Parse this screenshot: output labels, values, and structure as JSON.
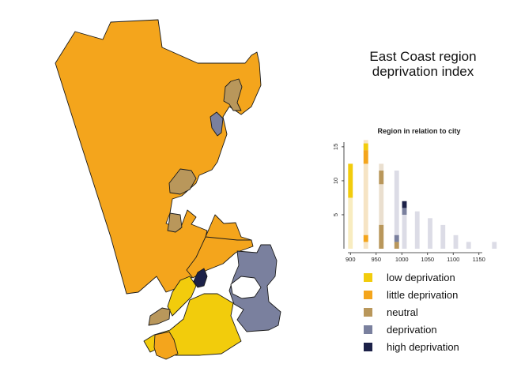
{
  "title": {
    "line1": "East Coast region",
    "line2": "deprivation index"
  },
  "colors": {
    "low_deprivation": "#f2cc0c",
    "little_deprivation": "#f4a51c",
    "neutral": "#b9975b",
    "deprivation": "#7a809e",
    "high_deprivation": "#1c2148",
    "outline": "#1a1a1a"
  },
  "legend": {
    "items": [
      {
        "label": "low deprivation",
        "color": "#f2cc0c"
      },
      {
        "label": "little deprivation",
        "color": "#f4a51c"
      },
      {
        "label": "neutral",
        "color": "#b9975b"
      },
      {
        "label": "deprivation",
        "color": "#7a809e"
      },
      {
        "label": "high deprivation",
        "color": "#1c2148"
      }
    ]
  },
  "chart_data": {
    "type": "bar",
    "title": "Region in relation to city",
    "xlabel": "",
    "ylabel": "",
    "x_ticks": [
      900,
      950,
      1000,
      1050,
      1100,
      1150
    ],
    "y_ticks": [
      5,
      10,
      15
    ],
    "xlim": [
      895,
      1195
    ],
    "ylim": [
      0,
      16.5
    ],
    "bin_width": 15,
    "bins": [
      900,
      930,
      960,
      990,
      1005,
      1030,
      1055,
      1080,
      1105,
      1130,
      1180
    ],
    "background_counts": [
      12.5,
      16,
      12.5,
      11.5,
      6,
      5.5,
      4.5,
      3.5,
      2,
      1,
      1
    ],
    "region_bars": [
      {
        "x": 900,
        "from": 7.5,
        "to": 12.5,
        "category": "low deprivation"
      },
      {
        "x": 930,
        "from": 14.5,
        "to": 15.5,
        "category": "low deprivation"
      },
      {
        "x": 930,
        "from": 12.5,
        "to": 14.5,
        "category": "little deprivation"
      },
      {
        "x": 930,
        "from": 1,
        "to": 2,
        "category": "little deprivation"
      },
      {
        "x": 960,
        "from": 9.5,
        "to": 11.5,
        "category": "neutral"
      },
      {
        "x": 960,
        "from": 0,
        "to": 3.5,
        "category": "neutral"
      },
      {
        "x": 990,
        "from": 0,
        "to": 1,
        "category": "neutral"
      },
      {
        "x": 990,
        "from": 1,
        "to": 2,
        "category": "deprivation"
      },
      {
        "x": 1005,
        "from": 5,
        "to": 6,
        "category": "deprivation"
      },
      {
        "x": 1005,
        "from": 6,
        "to": 7,
        "category": "high deprivation"
      }
    ]
  },
  "map": {
    "regions": [
      {
        "name": "gisborne-district",
        "category": "little deprivation"
      },
      {
        "name": "tolaga-bay",
        "category": "neutral"
      },
      {
        "name": "tokomaru-bay",
        "category": "deprivation"
      },
      {
        "name": "wairoa-coast",
        "category": "neutral"
      },
      {
        "name": "wairoa-inland",
        "category": "little deprivation"
      },
      {
        "name": "nuhaka",
        "category": "neutral"
      },
      {
        "name": "mahia",
        "category": "deprivation"
      },
      {
        "name": "city-centre",
        "category": "high deprivation"
      },
      {
        "name": "city-north",
        "category": "low deprivation"
      },
      {
        "name": "napier-south",
        "category": "low deprivation"
      },
      {
        "name": "napier-west",
        "category": "little deprivation"
      },
      {
        "name": "hastings-coast",
        "category": "neutral"
      }
    ]
  }
}
